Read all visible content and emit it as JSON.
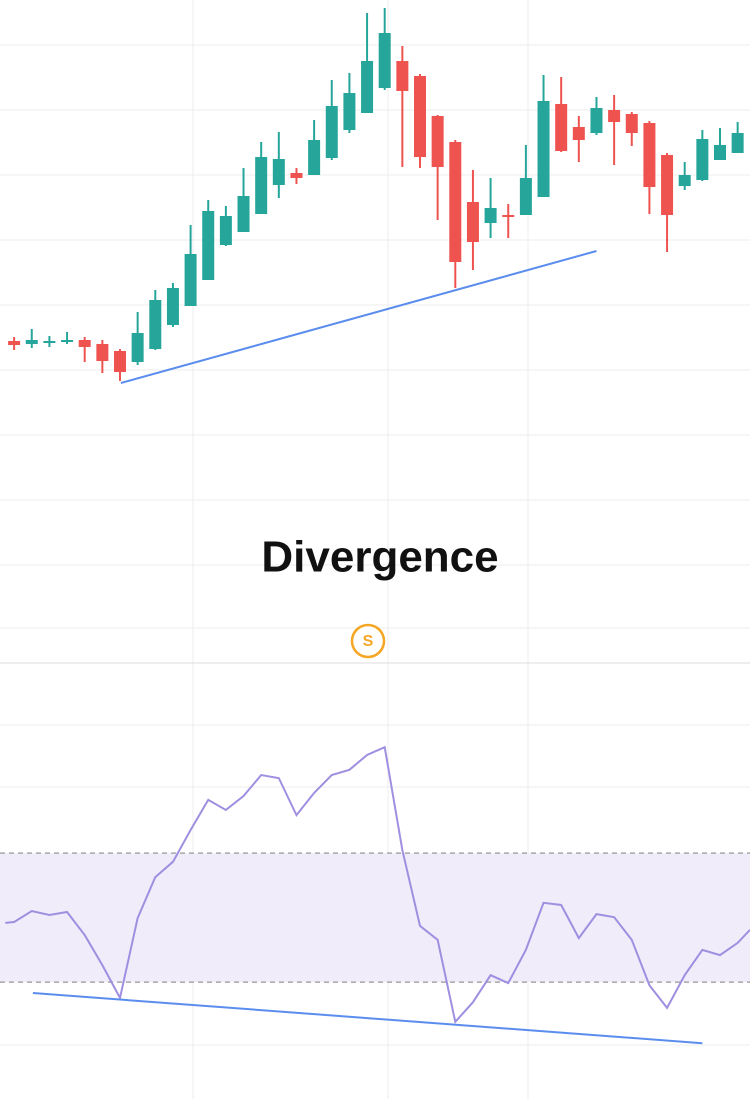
{
  "title": "Divergence",
  "badge": "S",
  "chart_data": [
    {
      "type": "candlestick",
      "categories": [
        null,
        null,
        null,
        null,
        null,
        null,
        null,
        null,
        null,
        null,
        null,
        null,
        null,
        null,
        null,
        null,
        null,
        null,
        null,
        null,
        null,
        null,
        null,
        null,
        null,
        null,
        null,
        null,
        null,
        null,
        null,
        null,
        null,
        null,
        null,
        null,
        null,
        null,
        null,
        null,
        null,
        null
      ],
      "open": [
        79,
        76,
        79,
        80,
        80,
        76,
        69,
        58,
        71,
        95,
        114,
        140,
        175,
        188,
        206,
        235,
        247,
        245,
        262,
        290,
        307,
        332,
        359,
        344,
        304,
        278,
        218,
        197,
        205,
        205,
        223,
        316,
        293,
        287,
        310,
        306,
        297,
        265,
        234,
        240,
        260,
        267
      ],
      "high": [
        83,
        91,
        84,
        88,
        83,
        80,
        71,
        108,
        130,
        137,
        195,
        220,
        214,
        252,
        278,
        288,
        252,
        300,
        340,
        347,
        407,
        412,
        374,
        346,
        305,
        280,
        250,
        242,
        216,
        275,
        345,
        343,
        304,
        323,
        325,
        308,
        299,
        267,
        258,
        290,
        292,
        298
      ],
      "low": [
        70,
        72,
        73,
        76,
        58,
        47,
        39,
        55,
        70,
        93,
        114,
        140,
        174,
        188,
        206,
        222,
        236,
        245,
        260,
        287,
        307,
        330,
        253,
        252,
        200,
        132,
        150,
        182,
        182,
        205,
        223,
        268,
        258,
        285,
        255,
        274,
        206,
        168,
        230,
        239,
        260,
        267
      ],
      "close": [
        75,
        80,
        79,
        80,
        73,
        59,
        48,
        87,
        120,
        132,
        166,
        209,
        204,
        224,
        263,
        261,
        242,
        280,
        314,
        327,
        359,
        387,
        329,
        263,
        253,
        158,
        178,
        212,
        203,
        242,
        319,
        269,
        280,
        312,
        298,
        287,
        233,
        205,
        245,
        281,
        275,
        287
      ],
      "up_color": "#26a69a",
      "down_color": "#ef5350",
      "xlim": [
        -0.8,
        41.7
      ],
      "ylim": [
        -243,
        420
      ],
      "trendline": {
        "x": [
          6.05,
          33
        ],
        "values": [
          37,
          169
        ],
        "color": "#5b8def"
      }
    },
    {
      "type": "line",
      "x": [
        -0.5,
        0,
        1,
        2,
        3,
        4,
        5,
        6,
        7,
        8,
        9,
        10,
        11,
        12,
        13,
        14,
        15,
        16,
        17,
        18,
        19,
        20,
        21,
        22,
        23,
        24,
        25,
        26,
        27,
        28,
        29,
        30,
        31,
        32,
        33,
        34,
        35,
        36,
        37,
        38,
        39,
        40,
        41,
        41.7
      ],
      "values": [
        40.4,
        40.6,
        43.1,
        42.2,
        42.9,
        37.6,
        30.7,
        23.2,
        41.5,
        50.9,
        54.4,
        61.7,
        68.6,
        66.3,
        69.5,
        74.3,
        73.6,
        65.1,
        70.2,
        74.3,
        75.5,
        78.9,
        80.7,
        57.1,
        39.7,
        36.5,
        17.7,
        22.2,
        28.4,
        26.6,
        34.2,
        45.0,
        44.5,
        36.9,
        42.4,
        41.7,
        36.5,
        26.1,
        20.9,
        28.4,
        34.2,
        33.0,
        35.8,
        38.8
      ],
      "color": "#a08fe0",
      "band_color": "#f0ecfa",
      "level_color": "#a8a8a8",
      "levels": [
        56.4,
        26.8
      ],
      "xlim": [
        -0.8,
        41.7
      ],
      "ylim": [
        0,
        100
      ],
      "trendline": {
        "x": [
          1.07,
          39
        ],
        "values": [
          24.3,
          12.8
        ],
        "color": "#5b8def"
      }
    }
  ]
}
